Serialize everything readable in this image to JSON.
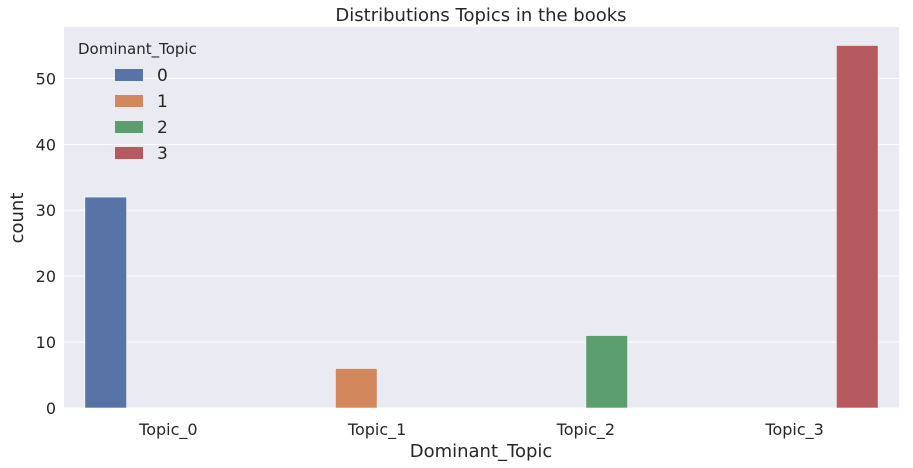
{
  "chart_data": {
    "type": "bar",
    "title": "Distributions Topics in the books",
    "xlabel": "Dominant_Topic",
    "ylabel": "count",
    "categories": [
      "Topic_0",
      "Topic_1",
      "Topic_2",
      "Topic_3"
    ],
    "ylim": [
      0,
      57.8
    ],
    "yticks": [
      0,
      10,
      20,
      30,
      40,
      50
    ],
    "grid": true,
    "legend": {
      "title": "Dominant_Topic",
      "placement": "top-left"
    },
    "series": [
      {
        "name": "0",
        "color": "#5874a6",
        "values": [
          32,
          0,
          0,
          0
        ]
      },
      {
        "name": "1",
        "color": "#d2875d",
        "values": [
          0,
          6,
          0,
          0
        ]
      },
      {
        "name": "2",
        "color": "#5c9e6e",
        "values": [
          0,
          0,
          11,
          0
        ]
      },
      {
        "name": "3",
        "color": "#b65a5f",
        "values": [
          0,
          0,
          0,
          55
        ]
      }
    ],
    "background": "#eaeaf2"
  }
}
